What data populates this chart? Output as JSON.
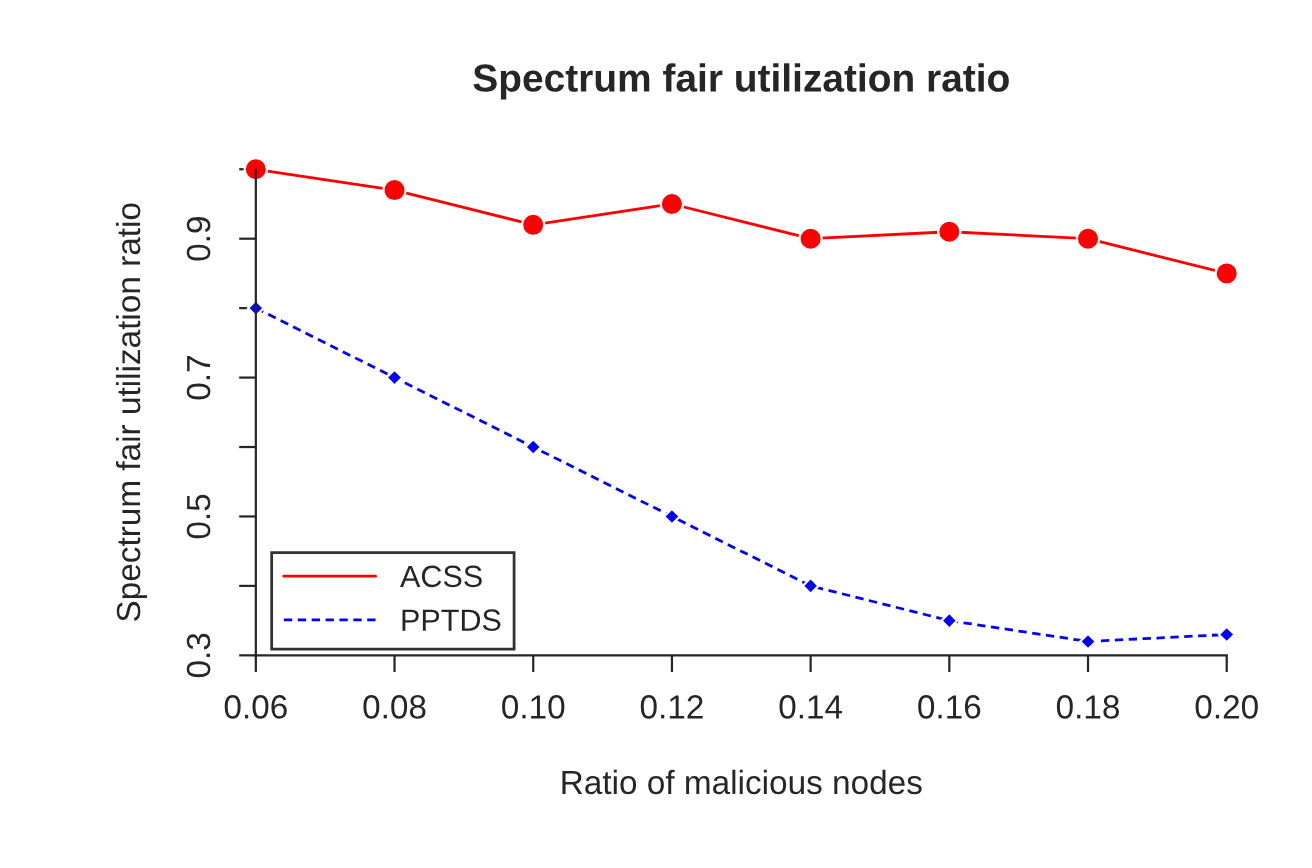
{
  "chart_data": {
    "type": "line",
    "title": "Spectrum fair utilization ratio",
    "xlabel": "Ratio of malicious nodes",
    "ylabel": "Spectrum fair utilization ratio",
    "x": [
      0.06,
      0.08,
      0.1,
      0.12,
      0.14,
      0.16,
      0.18,
      0.2
    ],
    "series": [
      {
        "name": "ACSS",
        "color": "#ff0000",
        "values": [
          1.0,
          0.97,
          0.92,
          0.95,
          0.9,
          0.91,
          0.9,
          0.85
        ],
        "marker": "circle",
        "line_style": "solid"
      },
      {
        "name": "PPTDS",
        "color": "#0000ff",
        "values": [
          0.8,
          0.7,
          0.6,
          0.5,
          0.4,
          0.35,
          0.32,
          0.33
        ],
        "marker": "diamond",
        "line_style": "dashed"
      }
    ],
    "xlim": [
      0.06,
      0.2
    ],
    "ylim": [
      0.3,
      1.0
    ],
    "xticks": [
      {
        "value": 0.06,
        "label": "0.06"
      },
      {
        "value": 0.08,
        "label": "0.08"
      },
      {
        "value": 0.1,
        "label": "0.10"
      },
      {
        "value": 0.12,
        "label": "0.12"
      },
      {
        "value": 0.14,
        "label": "0.14"
      },
      {
        "value": 0.16,
        "label": "0.16"
      },
      {
        "value": 0.18,
        "label": "0.18"
      },
      {
        "value": 0.2,
        "label": "0.20"
      }
    ],
    "yticks": [
      0.3,
      {
        "value": 0.4,
        "label": null
      },
      0.5,
      {
        "value": 0.6,
        "label": null
      },
      0.7,
      {
        "value": 0.8,
        "label": null
      },
      0.9,
      {
        "value": 1.0,
        "label": null
      }
    ],
    "grid": false,
    "legend": "bottom left"
  }
}
